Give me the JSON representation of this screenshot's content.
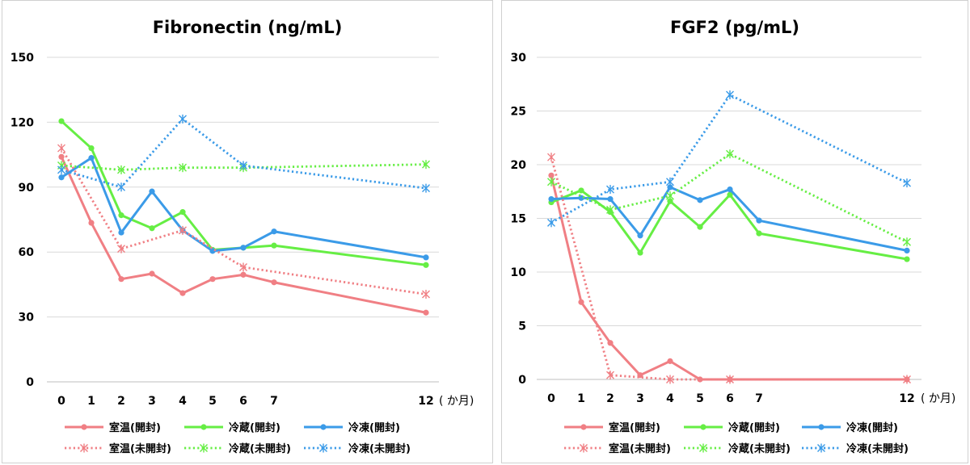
{
  "chart_data": [
    {
      "type": "line",
      "title": "Fibronectin (ng/mL)",
      "xlabel": "",
      "ylabel": "",
      "x_unit_label": "( か月)",
      "x": [
        0,
        1,
        2,
        3,
        4,
        5,
        6,
        7,
        12
      ],
      "x_tick_labels": [
        "0",
        "1",
        "2",
        "3",
        "4",
        "5",
        "6",
        "7",
        "12"
      ],
      "ylim": [
        0,
        150
      ],
      "y_ticks": [
        0,
        30,
        60,
        90,
        120,
        150
      ],
      "grid": true,
      "legend_position": "bottom",
      "series": [
        {
          "name": "室温(開封)",
          "color": "#f07f84",
          "style": "solid",
          "marker": "circle",
          "points": [
            [
              0,
              104
            ],
            [
              1,
              73.5
            ],
            [
              2,
              47.5
            ],
            [
              3,
              50
            ],
            [
              4,
              41
            ],
            [
              5,
              47.5
            ],
            [
              6,
              49.5
            ],
            [
              7,
              46
            ],
            [
              12,
              32
            ]
          ]
        },
        {
          "name": "冷蔵(開封)",
          "color": "#66ee44",
          "style": "solid",
          "marker": "circle",
          "points": [
            [
              0,
              120.5
            ],
            [
              1,
              108
            ],
            [
              2,
              77
            ],
            [
              3,
              71
            ],
            [
              4,
              78.5
            ],
            [
              5,
              61
            ],
            [
              6,
              62
            ],
            [
              7,
              63
            ],
            [
              12,
              54
            ]
          ]
        },
        {
          "name": "冷凍(開封)",
          "color": "#3b9be8",
          "style": "solid",
          "marker": "circle",
          "points": [
            [
              0,
              94.5
            ],
            [
              1,
              103.5
            ],
            [
              2,
              69
            ],
            [
              3,
              88
            ],
            [
              4,
              70
            ],
            [
              5,
              60.5
            ],
            [
              6,
              62
            ],
            [
              7,
              69.5
            ],
            [
              12,
              57.5
            ]
          ]
        },
        {
          "name": "室温(未開封)",
          "color": "#f07f84",
          "style": "dotted",
          "marker": "asterisk",
          "points": [
            [
              0,
              108
            ],
            [
              2,
              61.5
            ],
            [
              4,
              70
            ],
            [
              6,
              53
            ],
            [
              12,
              40.5
            ]
          ]
        },
        {
          "name": "冷蔵(未開封)",
          "color": "#66ee44",
          "style": "dotted",
          "marker": "asterisk",
          "points": [
            [
              0,
              100
            ],
            [
              2,
              98
            ],
            [
              4,
              99
            ],
            [
              6,
              99
            ],
            [
              12,
              100.5
            ]
          ]
        },
        {
          "name": "冷凍(未開封)",
          "color": "#3b9be8",
          "style": "dotted",
          "marker": "asterisk",
          "points": [
            [
              0,
              98
            ],
            [
              2,
              90
            ],
            [
              4,
              121.5
            ],
            [
              6,
              100
            ],
            [
              12,
              89.5
            ]
          ]
        }
      ]
    },
    {
      "type": "line",
      "title": "FGF2 (pg/mL)",
      "xlabel": "",
      "ylabel": "",
      "x_unit_label": "( か月)",
      "x": [
        0,
        1,
        2,
        3,
        4,
        5,
        6,
        7,
        12
      ],
      "x_tick_labels": [
        "0",
        "1",
        "2",
        "3",
        "4",
        "5",
        "6",
        "7",
        "12"
      ],
      "ylim": [
        0,
        30
      ],
      "y_ticks": [
        0,
        5,
        10,
        15,
        20,
        25,
        30
      ],
      "grid": true,
      "legend_position": "bottom",
      "series": [
        {
          "name": "室温(開封)",
          "color": "#f07f84",
          "style": "solid",
          "marker": "circle",
          "points": [
            [
              0,
              19
            ],
            [
              1,
              7.2
            ],
            [
              2,
              3.4
            ],
            [
              3,
              0.4
            ],
            [
              4,
              1.7
            ],
            [
              5,
              0
            ],
            [
              6,
              0
            ],
            [
              12,
              0
            ]
          ]
        },
        {
          "name": "冷蔵(開封)",
          "color": "#66ee44",
          "style": "solid",
          "marker": "circle",
          "points": [
            [
              0,
              16.5
            ],
            [
              1,
              17.6
            ],
            [
              2,
              15.6
            ],
            [
              3,
              11.8
            ],
            [
              4,
              16.6
            ],
            [
              5,
              14.2
            ],
            [
              6,
              17.2
            ],
            [
              7,
              13.6
            ],
            [
              12,
              11.2
            ]
          ]
        },
        {
          "name": "冷凍(開封)",
          "color": "#3b9be8",
          "style": "solid",
          "marker": "circle",
          "points": [
            [
              0,
              16.8
            ],
            [
              1,
              16.9
            ],
            [
              2,
              16.8
            ],
            [
              3,
              13.4
            ],
            [
              4,
              17.9
            ],
            [
              5,
              16.7
            ],
            [
              6,
              17.7
            ],
            [
              7,
              14.8
            ],
            [
              12,
              12
            ]
          ]
        },
        {
          "name": "室温(未開封)",
          "color": "#f07f84",
          "style": "dotted",
          "marker": "asterisk",
          "points": [
            [
              0,
              20.7
            ],
            [
              2,
              0.4
            ],
            [
              4,
              0
            ],
            [
              6,
              0
            ],
            [
              12,
              0
            ]
          ]
        },
        {
          "name": "冷蔵(未開封)",
          "color": "#66ee44",
          "style": "dotted",
          "marker": "asterisk",
          "points": [
            [
              0,
              18.4
            ],
            [
              2,
              15.8
            ],
            [
              4,
              17.1
            ],
            [
              6,
              21
            ],
            [
              12,
              12.8
            ]
          ]
        },
        {
          "name": "冷凍(未開封)",
          "color": "#3b9be8",
          "style": "dotted",
          "marker": "asterisk",
          "points": [
            [
              0,
              14.6
            ],
            [
              2,
              17.7
            ],
            [
              4,
              18.4
            ],
            [
              6,
              26.5
            ],
            [
              12,
              18.3
            ]
          ]
        }
      ]
    }
  ]
}
